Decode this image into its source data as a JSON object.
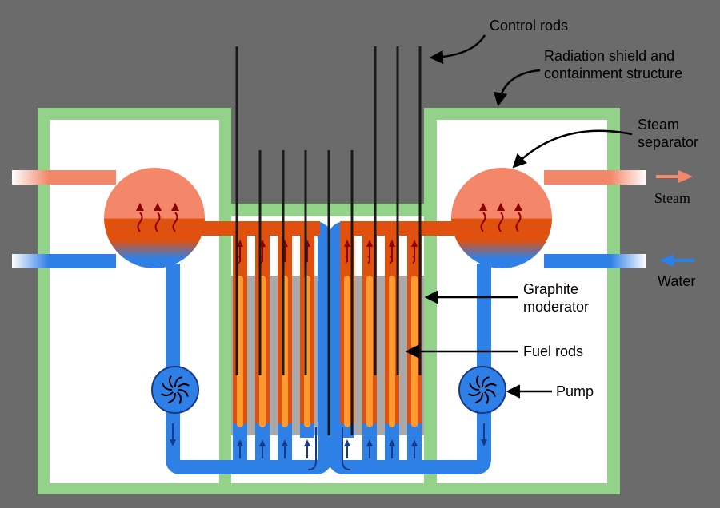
{
  "labels": {
    "control_rods": "Control rods",
    "shield_line1": "Radiation shield and",
    "shield_line2": "containment structure",
    "separator_line1": "Steam",
    "separator_line2": "separator",
    "steam": "Steam",
    "water": "Water",
    "moderator_line1": "Graphite",
    "moderator_line2": "moderator",
    "fuel_rods": "Fuel rods",
    "pump": "Pump"
  },
  "colors": {
    "background": "#6b6b6b",
    "shield": "#92d389",
    "chamber": "#ffffff",
    "moderator": "#a9a9a9",
    "water": "#2f80e6",
    "steam_mix": "#e0500e",
    "fuel": "#ff7a10",
    "steam_top": "#f4876a",
    "steam_arrow": "#f4876a",
    "heat_arrow": "#8b0000",
    "flow_arrow": "#153a8a",
    "rod": "#1a1a1a"
  }
}
